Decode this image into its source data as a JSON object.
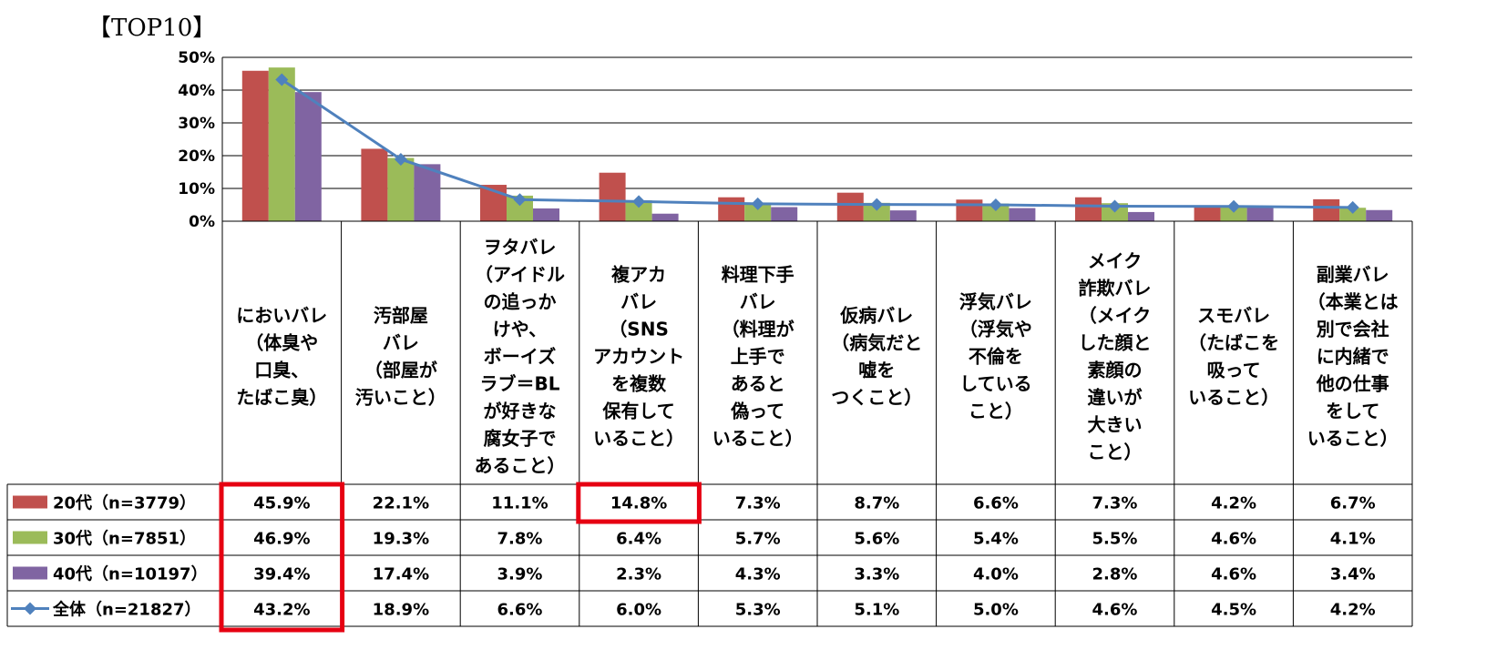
{
  "header": {
    "title": "【TOP10】"
  },
  "colors": {
    "series_20s": "#c0504d",
    "series_30s": "#9bbb59",
    "series_40s": "#8064a2",
    "series_total": "#4f81bd",
    "highlight": "#e60012",
    "grid": "#000000"
  },
  "chart_data": {
    "type": "bar",
    "combo": "clustered bars with overall line and data table",
    "title": "【TOP10】",
    "xlabel": "",
    "ylabel": "",
    "ylim": [
      0,
      50
    ],
    "yticks": [
      "0%",
      "10%",
      "20%",
      "30%",
      "40%",
      "50%"
    ],
    "grid": true,
    "categories": [
      [
        "においバレ",
        "（体臭や",
        "口臭、",
        "たばこ臭）"
      ],
      [
        "汚部屋",
        "バレ",
        "（部屋が",
        "汚いこと）"
      ],
      [
        "ヲタバレ",
        "（アイドル",
        "の追っか",
        "けや、",
        "ボーイズ",
        "ラブ＝BL",
        "が好きな",
        "腐女子で",
        "あること）"
      ],
      [
        "複アカ",
        "バレ",
        "（SNS",
        "アカウント",
        "を複数",
        "保有して",
        "いること）"
      ],
      [
        "料理下手",
        "バレ",
        "（料理が",
        "上手で",
        "あると",
        "偽って",
        "いること）"
      ],
      [
        "仮病バレ",
        "（病気だと",
        "嘘を",
        "つくこと）"
      ],
      [
        "浮気バレ",
        "（浮気や",
        "不倫を",
        "している",
        "こと）"
      ],
      [
        "メイク",
        "詐欺バレ",
        "（メイク",
        "した顔と",
        "素顔の",
        "違いが",
        "大きい",
        "こと）"
      ],
      [
        "スモバレ",
        "（たばこを",
        "吸って",
        "いること）"
      ],
      [
        "副業バレ",
        "（本業とは",
        "別で会社",
        "に内緒で",
        "他の仕事",
        "をして",
        "いること）"
      ]
    ],
    "series": [
      {
        "name": "20代（n=3779）",
        "type": "bar",
        "values": [
          45.9,
          22.1,
          11.1,
          14.8,
          7.3,
          8.7,
          6.6,
          7.3,
          4.2,
          6.7
        ],
        "labels": [
          "45.9%",
          "22.1%",
          "11.1%",
          "14.8%",
          "7.3%",
          "8.7%",
          "6.6%",
          "7.3%",
          "4.2%",
          "6.7%"
        ]
      },
      {
        "name": "30代（n=7851）",
        "type": "bar",
        "values": [
          46.9,
          19.3,
          7.8,
          6.4,
          5.7,
          5.6,
          5.4,
          5.5,
          4.6,
          4.1
        ],
        "labels": [
          "46.9%",
          "19.3%",
          "7.8%",
          "6.4%",
          "5.7%",
          "5.6%",
          "5.4%",
          "5.5%",
          "4.6%",
          "4.1%"
        ]
      },
      {
        "name": "40代（n=10197）",
        "type": "bar",
        "values": [
          39.4,
          17.4,
          3.9,
          2.3,
          4.3,
          3.3,
          4.0,
          2.8,
          4.6,
          3.4
        ],
        "labels": [
          "39.4%",
          "17.4%",
          "3.9%",
          "2.3%",
          "4.3%",
          "3.3%",
          "4.0%",
          "2.8%",
          "4.6%",
          "3.4%"
        ]
      },
      {
        "name": "全体（n=21827）",
        "type": "line",
        "values": [
          43.2,
          18.9,
          6.6,
          6.0,
          5.3,
          5.1,
          5.0,
          4.6,
          4.5,
          4.2
        ],
        "labels": [
          "43.2%",
          "18.9%",
          "6.6%",
          "6.0%",
          "5.3%",
          "5.1%",
          "5.0%",
          "4.6%",
          "4.5%",
          "4.2%"
        ]
      }
    ],
    "highlights": [
      "においバレ column (all series)",
      "複アカバレ 20代 cell"
    ]
  }
}
